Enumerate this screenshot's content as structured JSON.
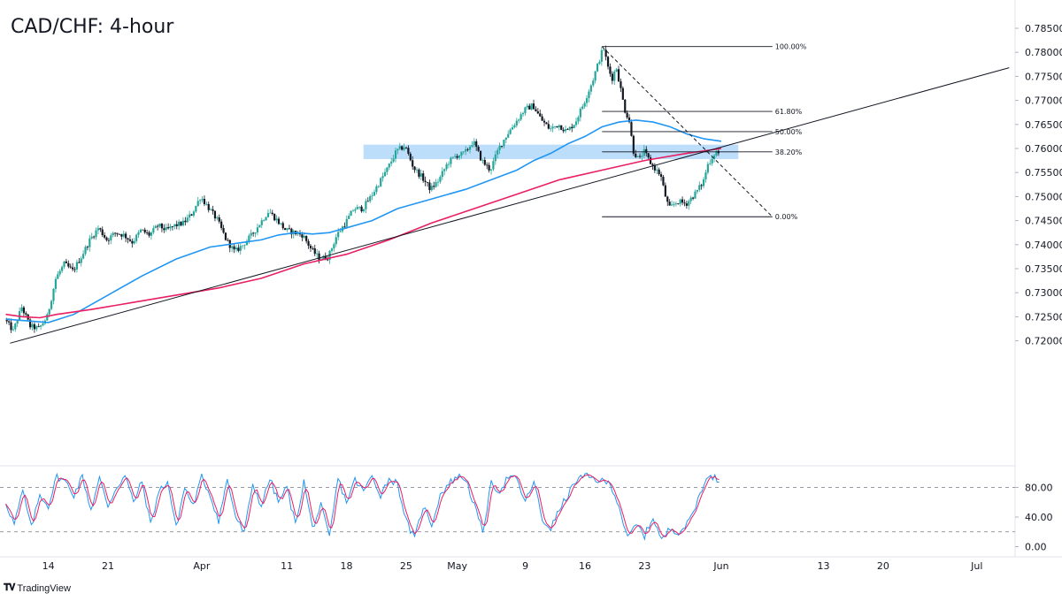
{
  "chart_data": {
    "type": "candlestick",
    "title": "CAD/CHF: 4-hour",
    "brand": {
      "logo_icon": "tradingview-logo-icon",
      "label": "TradingView"
    },
    "price_axis": {
      "range": [
        0.716,
        0.786
      ],
      "ticks": [
        0.785,
        0.78,
        0.775,
        0.77,
        0.765,
        0.76,
        0.755,
        0.75,
        0.745,
        0.74,
        0.735,
        0.73,
        0.725,
        0.72
      ],
      "tick_labels": [
        "0.78500",
        "0.78000",
        "0.77500",
        "0.77000",
        "0.76500",
        "0.76000",
        "0.75500",
        "0.75000",
        "0.74500",
        "0.74000",
        "0.73500",
        "0.73000",
        "0.72500",
        "0.72000"
      ]
    },
    "time_axis": {
      "labels": [
        "14",
        "21",
        "Apr",
        "11",
        "18",
        "25",
        "May",
        "9",
        "16",
        "23",
        "Jun",
        "13",
        "20",
        "Jul"
      ],
      "label_days": [
        5,
        12,
        23,
        33,
        40,
        47,
        53,
        61,
        68,
        75,
        84,
        96,
        103,
        114
      ]
    },
    "price_path": {
      "day_start": 0,
      "day_end": 83.8,
      "anchors": [
        [
          0,
          0.7245
        ],
        [
          1,
          0.722
        ],
        [
          2,
          0.727
        ],
        [
          3,
          0.723
        ],
        [
          4,
          0.7225
        ],
        [
          5,
          0.725
        ],
        [
          6,
          0.733
        ],
        [
          7,
          0.736
        ],
        [
          8,
          0.7345
        ],
        [
          9,
          0.7375
        ],
        [
          10,
          0.741
        ],
        [
          11,
          0.7435
        ],
        [
          12,
          0.741
        ],
        [
          13,
          0.7425
        ],
        [
          14,
          0.742
        ],
        [
          15,
          0.7405
        ],
        [
          16,
          0.743
        ],
        [
          17,
          0.742
        ],
        [
          18,
          0.744
        ],
        [
          19,
          0.743
        ],
        [
          20,
          0.744
        ],
        [
          21,
          0.7445
        ],
        [
          22,
          0.7465
        ],
        [
          23,
          0.75
        ],
        [
          24,
          0.7475
        ],
        [
          25,
          0.745
        ],
        [
          26,
          0.741
        ],
        [
          27,
          0.7385
        ],
        [
          28,
          0.74
        ],
        [
          29,
          0.742
        ],
        [
          30,
          0.7445
        ],
        [
          31,
          0.747
        ],
        [
          32,
          0.745
        ],
        [
          33,
          0.743
        ],
        [
          34,
          0.7425
        ],
        [
          35,
          0.742
        ],
        [
          36,
          0.739
        ],
        [
          37,
          0.737
        ],
        [
          38,
          0.7375
        ],
        [
          39,
          0.742
        ],
        [
          40,
          0.7445
        ],
        [
          41,
          0.7475
        ],
        [
          42,
          0.7475
        ],
        [
          43,
          0.75
        ],
        [
          44,
          0.753
        ],
        [
          45,
          0.756
        ],
        [
          46,
          0.7595
        ],
        [
          47,
          0.7605
        ],
        [
          48,
          0.756
        ],
        [
          49,
          0.754
        ],
        [
          50,
          0.7515
        ],
        [
          51,
          0.7535
        ],
        [
          52,
          0.757
        ],
        [
          53,
          0.7585
        ],
        [
          54,
          0.759
        ],
        [
          55,
          0.7615
        ],
        [
          56,
          0.7575
        ],
        [
          57,
          0.7555
        ],
        [
          58,
          0.76
        ],
        [
          59,
          0.763
        ],
        [
          60,
          0.7655
        ],
        [
          61,
          0.768
        ],
        [
          62,
          0.769
        ],
        [
          63,
          0.766
        ],
        [
          64,
          0.764
        ],
        [
          65,
          0.765
        ],
        [
          66,
          0.7635
        ],
        [
          67,
          0.7655
        ],
        [
          68,
          0.7695
        ],
        [
          69,
          0.774
        ],
        [
          70,
          0.7795
        ],
        [
          70.3,
          0.781
        ],
        [
          70.8,
          0.777
        ],
        [
          71.3,
          0.7745
        ],
        [
          71.8,
          0.777
        ],
        [
          72.3,
          0.7725
        ],
        [
          72.8,
          0.768
        ],
        [
          73.3,
          0.766
        ],
        [
          73.8,
          0.7595
        ],
        [
          74.5,
          0.7575
        ],
        [
          75,
          0.7595
        ],
        [
          75.5,
          0.758
        ],
        [
          76,
          0.7565
        ],
        [
          77,
          0.7545
        ],
        [
          77.5,
          0.7505
        ],
        [
          78,
          0.7475
        ],
        [
          79,
          0.749
        ],
        [
          80,
          0.7485
        ],
        [
          81,
          0.7505
        ],
        [
          82,
          0.753
        ],
        [
          82.5,
          0.7565
        ],
        [
          83,
          0.758
        ],
        [
          83.5,
          0.7595
        ],
        [
          83.8,
          0.759
        ]
      ]
    },
    "candle_count": 336,
    "moving_averages": [
      {
        "name": "",
        "color": "#2196F3",
        "points": [
          [
            0,
            0.7245
          ],
          [
            5,
            0.7238
          ],
          [
            8,
            0.7255
          ],
          [
            12,
            0.7295
          ],
          [
            16,
            0.7335
          ],
          [
            20,
            0.737
          ],
          [
            24,
            0.7395
          ],
          [
            28,
            0.7405
          ],
          [
            30,
            0.741
          ],
          [
            32,
            0.742
          ],
          [
            34,
            0.7425
          ],
          [
            36,
            0.7422
          ],
          [
            38,
            0.7425
          ],
          [
            40,
            0.7435
          ],
          [
            43,
            0.745
          ],
          [
            46,
            0.7475
          ],
          [
            50,
            0.7495
          ],
          [
            54,
            0.7515
          ],
          [
            57,
            0.7535
          ],
          [
            60,
            0.7555
          ],
          [
            62,
            0.7575
          ],
          [
            64,
            0.759
          ],
          [
            66,
            0.761
          ],
          [
            68,
            0.7625
          ],
          [
            70,
            0.7645
          ],
          [
            72,
            0.7655
          ],
          [
            74,
            0.7659
          ],
          [
            76,
            0.7655
          ],
          [
            78,
            0.7645
          ],
          [
            80,
            0.763
          ],
          [
            82,
            0.762
          ],
          [
            84,
            0.7615
          ]
        ]
      },
      {
        "name": "",
        "color": "#E91E63",
        "points": [
          [
            0,
            0.7255
          ],
          [
            2,
            0.725
          ],
          [
            4,
            0.7248
          ],
          [
            6,
            0.7255
          ],
          [
            10,
            0.7265
          ],
          [
            15,
            0.728
          ],
          [
            20,
            0.7295
          ],
          [
            25,
            0.731
          ],
          [
            30,
            0.733
          ],
          [
            35,
            0.736
          ],
          [
            40,
            0.738
          ],
          [
            45,
            0.741
          ],
          [
            50,
            0.7445
          ],
          [
            55,
            0.7475
          ],
          [
            60,
            0.7505
          ],
          [
            65,
            0.7535
          ],
          [
            70,
            0.7555
          ],
          [
            75,
            0.7575
          ],
          [
            80,
            0.759
          ],
          [
            84,
            0.76
          ]
        ]
      }
    ],
    "trendline": {
      "from": [
        0.5,
        0.7195
      ],
      "to": [
        117.8,
        0.7768
      ],
      "color": "#131722"
    },
    "resistance_zone": {
      "day_start": 42,
      "day_end": 86,
      "price_low": 0.7578,
      "price_high": 0.7608,
      "color": "#90C8F8"
    },
    "fibonacci": {
      "high": {
        "day": 70,
        "price": 0.7812
      },
      "low": {
        "day": 78,
        "price": 0.7458
      },
      "line_end_day": 90,
      "levels": [
        {
          "label": "100.00%",
          "price": 0.7812,
          "day_start": 70
        },
        {
          "label": "61.80%",
          "price": 0.7677,
          "day_start": 70
        },
        {
          "label": "50.00%",
          "price": 0.7635,
          "day_start": 70
        },
        {
          "label": "38.20%",
          "price": 0.7593,
          "day_start": 70
        },
        {
          "label": "0.00%",
          "price": 0.7458,
          "day_start": 70
        }
      ],
      "dashed_from": [
        70,
        0.7812
      ],
      "dashed_to": [
        90,
        0.7458
      ]
    },
    "oscillator": {
      "range": [
        -8,
        100
      ],
      "ticks": [
        80,
        40,
        0
      ],
      "tick_labels": [
        "80.00",
        "40.00",
        "0.00"
      ],
      "overbought": 80,
      "oversold": 20,
      "k_color": "#2196F3",
      "d_color": "#E91E63",
      "anchors": [
        [
          0,
          60
        ],
        [
          1,
          30
        ],
        [
          2,
          75
        ],
        [
          3,
          25
        ],
        [
          4,
          70
        ],
        [
          5,
          55
        ],
        [
          6,
          95
        ],
        [
          7,
          88
        ],
        [
          8,
          70
        ],
        [
          9,
          95
        ],
        [
          10,
          50
        ],
        [
          11,
          92
        ],
        [
          12,
          55
        ],
        [
          13,
          80
        ],
        [
          14,
          96
        ],
        [
          15,
          60
        ],
        [
          16,
          88
        ],
        [
          17,
          30
        ],
        [
          18,
          75
        ],
        [
          19,
          88
        ],
        [
          20,
          25
        ],
        [
          21,
          80
        ],
        [
          22,
          55
        ],
        [
          23,
          94
        ],
        [
          24,
          70
        ],
        [
          25,
          35
        ],
        [
          26,
          90
        ],
        [
          27,
          40
        ],
        [
          28,
          18
        ],
        [
          29,
          85
        ],
        [
          30,
          55
        ],
        [
          31,
          92
        ],
        [
          32,
          60
        ],
        [
          33,
          80
        ],
        [
          34,
          30
        ],
        [
          35,
          88
        ],
        [
          36,
          25
        ],
        [
          37,
          55
        ],
        [
          38,
          12
        ],
        [
          39,
          92
        ],
        [
          40,
          60
        ],
        [
          41,
          90
        ],
        [
          42,
          75
        ],
        [
          43,
          95
        ],
        [
          44,
          70
        ],
        [
          45,
          92
        ],
        [
          46,
          85
        ],
        [
          47,
          35
        ],
        [
          48,
          10
        ],
        [
          49,
          55
        ],
        [
          50,
          30
        ],
        [
          51,
          70
        ],
        [
          52,
          85
        ],
        [
          53,
          95
        ],
        [
          54,
          92
        ],
        [
          55,
          55
        ],
        [
          56,
          20
        ],
        [
          57,
          85
        ],
        [
          58,
          75
        ],
        [
          59,
          95
        ],
        [
          60,
          90
        ],
        [
          61,
          60
        ],
        [
          62,
          88
        ],
        [
          63,
          35
        ],
        [
          64,
          25
        ],
        [
          65,
          50
        ],
        [
          66,
          70
        ],
        [
          67,
          90
        ],
        [
          68,
          95
        ],
        [
          69,
          92
        ],
        [
          70,
          88
        ],
        [
          71,
          85
        ],
        [
          72,
          55
        ],
        [
          73,
          10
        ],
        [
          74,
          30
        ],
        [
          75,
          15
        ],
        [
          76,
          40
        ],
        [
          77,
          8
        ],
        [
          78,
          25
        ],
        [
          79,
          20
        ],
        [
          80,
          30
        ],
        [
          81,
          55
        ],
        [
          82,
          88
        ],
        [
          83,
          95
        ],
        [
          83.8,
          88
        ]
      ]
    }
  }
}
